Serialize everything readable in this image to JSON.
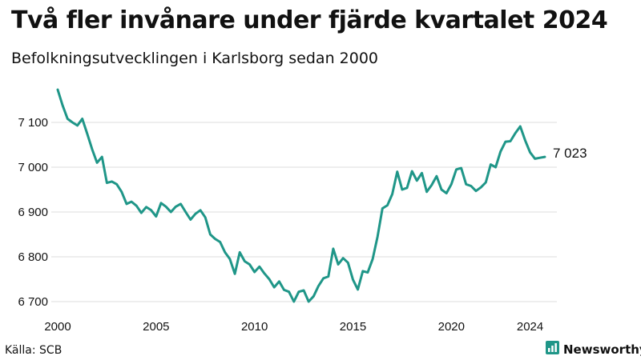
{
  "header": {
    "title": "Två fler invånare under fjärde kvartalet 2024",
    "subtitle": "Befolkningsutvecklingen i Karlsborg sedan 2000"
  },
  "footer": {
    "source": "Källa: SCB",
    "brand": "Newsworthy"
  },
  "colors": {
    "line": "#1f9688",
    "grid": "#dddddd",
    "brand": "#1f9688"
  },
  "chart_data": {
    "type": "line",
    "title": "Två fler invånare under fjärde kvartalet 2024",
    "subtitle": "Befolkningsutvecklingen i Karlsborg sedan 2000",
    "xlabel": "",
    "ylabel": "",
    "x_ticks": [
      "2000",
      "2005",
      "2010",
      "2015",
      "2020",
      "2024"
    ],
    "y_ticks": [
      "6 700",
      "6 800",
      "6 900",
      "7 000",
      "7 100"
    ],
    "ylim": [
      6690,
      7180
    ],
    "xlim": [
      "2000 Q1",
      "2024 Q4"
    ],
    "grid": true,
    "end_label": "7 023",
    "series": [
      {
        "values": [
          7173,
          7138,
          7108,
          7100,
          7093,
          7108,
          7075,
          7040,
          7010,
          7023,
          6965,
          6968,
          6962,
          6945,
          6918,
          6923,
          6914,
          6898,
          6911,
          6904,
          6890,
          6920,
          6912,
          6900,
          6912,
          6918,
          6900,
          6883,
          6896,
          6904,
          6888,
          6850,
          6840,
          6833,
          6810,
          6795,
          6762,
          6810,
          6790,
          6783,
          6766,
          6778,
          6763,
          6750,
          6732,
          6745,
          6726,
          6722,
          6700,
          6722,
          6725,
          6700,
          6712,
          6735,
          6752,
          6756,
          6818,
          6783,
          6797,
          6787,
          6749,
          6727,
          6768,
          6765,
          6795,
          6845,
          6908,
          6915,
          6940,
          6990,
          6950,
          6954,
          6991,
          6970,
          6987,
          6945,
          6960,
          6980,
          6950,
          6942,
          6962,
          6995,
          6998,
          6962,
          6958,
          6947,
          6955,
          6966,
          7006,
          7000,
          7035,
          7057,
          7058,
          7076,
          7091,
          7060,
          7033,
          7019,
          7021,
          7023
        ]
      }
    ]
  }
}
